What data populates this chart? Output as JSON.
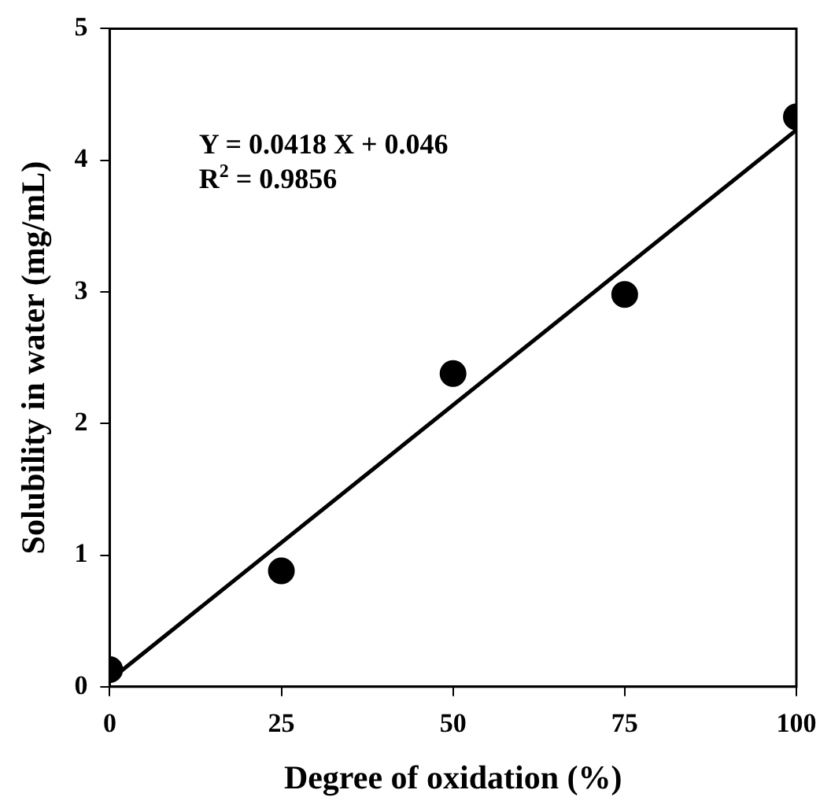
{
  "chart_data": {
    "type": "scatter",
    "xlabel": "Degree of oxidation (%)",
    "ylabel": "Solubility in water (mg/mL)",
    "x": [
      0,
      25,
      50,
      75,
      100
    ],
    "series": [
      {
        "color": "#000000",
        "marker": "circle",
        "values": [
          0.13,
          0.88,
          2.38,
          2.98,
          4.33
        ]
      },
      {
        "type": "line",
        "color": "#000000",
        "marker": "none",
        "x": [
          0,
          100
        ],
        "values": [
          0.05,
          4.23
        ]
      }
    ],
    "xlim": [
      0,
      100
    ],
    "xticks": [
      0,
      25,
      50,
      75,
      100
    ],
    "ylim": [
      0,
      5
    ],
    "yticks": [
      0,
      1,
      2,
      3,
      4,
      5
    ],
    "grid": false,
    "legend": false,
    "annotations": [
      "Y = 0.0418 X + 0.046",
      "R$^{2}$ = 0.9856"
    ]
  }
}
